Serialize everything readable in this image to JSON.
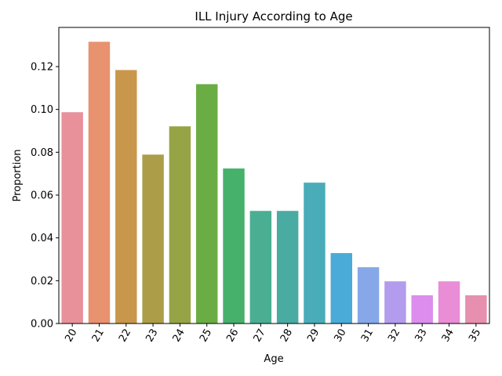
{
  "chart_data": {
    "type": "bar",
    "title": "ILL Injury According to Age",
    "xlabel": "Age",
    "ylabel": "Proportion",
    "categories": [
      "20",
      "21",
      "22",
      "23",
      "24",
      "25",
      "26",
      "27",
      "28",
      "29",
      "30",
      "31",
      "32",
      "33",
      "34",
      "35"
    ],
    "values": [
      0.0987,
      0.1316,
      0.1184,
      0.0789,
      0.0921,
      0.1118,
      0.0724,
      0.0526,
      0.0526,
      0.0658,
      0.0329,
      0.0263,
      0.0197,
      0.0132,
      0.0197,
      0.0132
    ],
    "colors": [
      "#e8919b",
      "#e8926f",
      "#c9974b",
      "#ac9e48",
      "#97a445",
      "#6aad45",
      "#45b16b",
      "#4aaf92",
      "#4aaba3",
      "#4bacb9",
      "#4aabd8",
      "#86a8e8",
      "#b39ced",
      "#dc8ded",
      "#e98dd6",
      "#e78fae"
    ],
    "ylim": [
      0,
      0.1383
    ],
    "yticks": [
      0.0,
      0.02,
      0.04,
      0.06,
      0.08,
      0.1,
      0.12
    ],
    "ytick_labels": [
      "0.00",
      "0.02",
      "0.04",
      "0.06",
      "0.08",
      "0.10",
      "0.12"
    ],
    "grid": false,
    "legend": "none",
    "xtick_rotation": "60 degrees"
  }
}
